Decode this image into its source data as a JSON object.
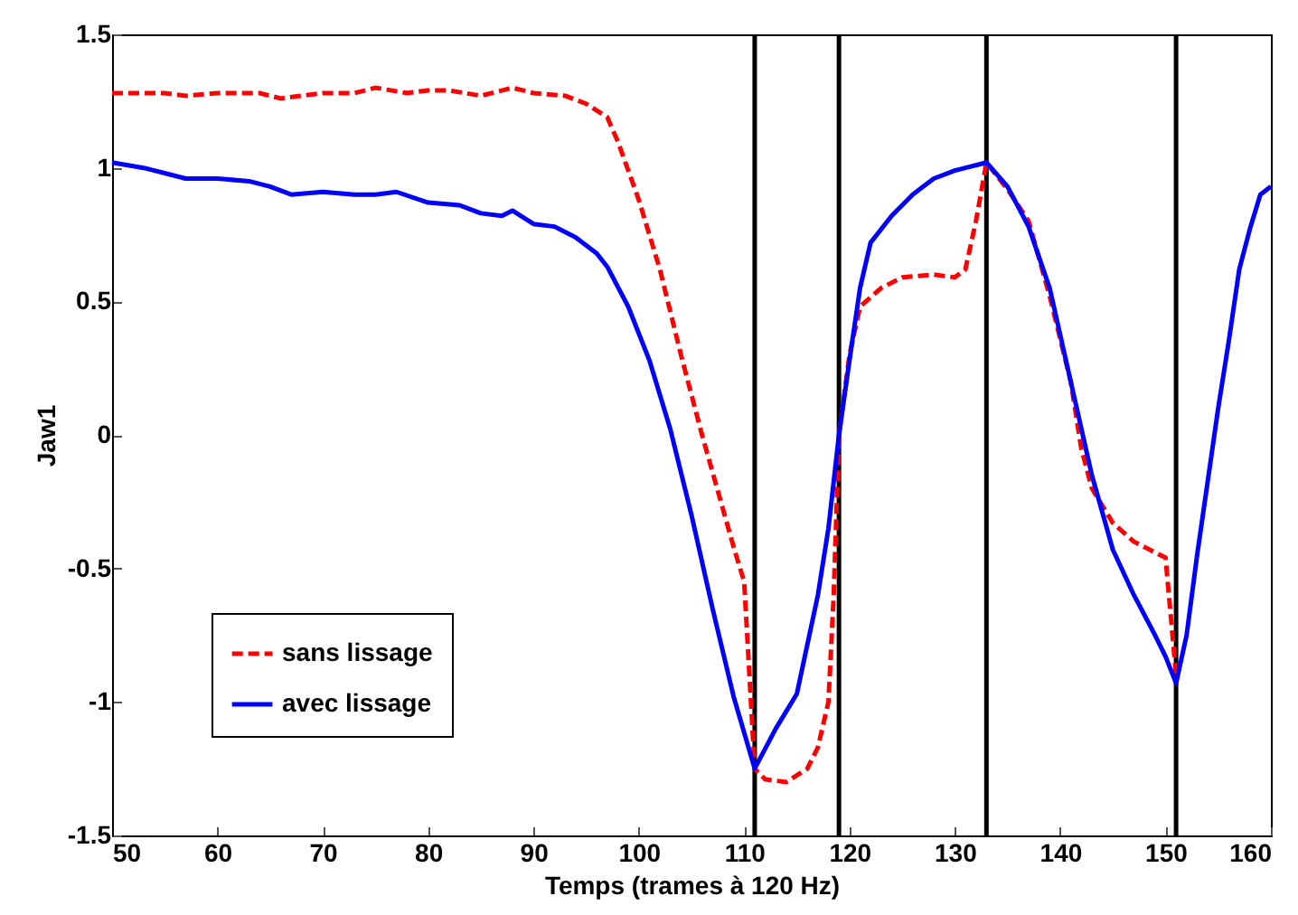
{
  "chart_data": {
    "type": "line",
    "xlabel": "Temps (trames à 120 Hz)",
    "ylabel": "Jaw1",
    "xlim": [
      50,
      160
    ],
    "xticks": [
      50,
      60,
      70,
      80,
      90,
      100,
      110,
      120,
      130,
      140,
      150,
      160
    ],
    "ylim": [
      -1.5,
      1.5
    ],
    "yticks": [
      -1.5,
      -1,
      -0.5,
      0,
      0.5,
      1,
      1.5
    ],
    "grid": false,
    "legend": "bottom left",
    "series": [
      {
        "name": "sans lissage",
        "color": "#ff0000",
        "line_style": "dashed",
        "x": [
          50,
          55,
          57,
          60,
          64,
          66,
          70,
          73,
          75,
          78,
          80,
          82,
          85,
          88,
          90,
          93,
          95,
          97,
          98,
          100,
          102,
          104,
          106,
          108,
          109,
          110,
          111,
          112,
          114,
          116,
          117,
          118,
          118.5,
          119,
          120,
          121,
          123,
          125,
          128,
          130,
          131,
          132,
          133,
          135,
          137,
          139,
          141,
          142,
          143,
          145,
          147,
          150,
          151
        ],
        "values": [
          1.28,
          1.28,
          1.27,
          1.28,
          1.28,
          1.26,
          1.28,
          1.28,
          1.3,
          1.28,
          1.29,
          1.29,
          1.27,
          1.3,
          1.28,
          1.27,
          1.24,
          1.19,
          1.1,
          0.88,
          0.62,
          0.3,
          0.0,
          -0.28,
          -0.42,
          -0.55,
          -1.25,
          -1.29,
          -1.3,
          -1.25,
          -1.17,
          -1.0,
          -0.6,
          0.0,
          0.3,
          0.48,
          0.55,
          0.59,
          0.6,
          0.59,
          0.62,
          0.8,
          1.02,
          0.92,
          0.8,
          0.52,
          0.2,
          -0.05,
          -0.2,
          -0.33,
          -0.4,
          -0.46,
          -0.9
        ]
      },
      {
        "name": "avec lissage",
        "color": "#0000ff",
        "line_style": "solid",
        "x": [
          50,
          53,
          57,
          60,
          63,
          65,
          67,
          70,
          73,
          75,
          77,
          80,
          83,
          85,
          87,
          88,
          90,
          92,
          94,
          96,
          97,
          99,
          101,
          103,
          105,
          107,
          109,
          111,
          113,
          115,
          117,
          118,
          119,
          120,
          121,
          122,
          124,
          126,
          128,
          130,
          133,
          135,
          137,
          139,
          141,
          143,
          145,
          147,
          149,
          150,
          151,
          152,
          153,
          155,
          156,
          157,
          158,
          159,
          160
        ],
        "values": [
          1.02,
          1.0,
          0.96,
          0.96,
          0.95,
          0.93,
          0.9,
          0.91,
          0.9,
          0.9,
          0.91,
          0.87,
          0.86,
          0.83,
          0.82,
          0.84,
          0.79,
          0.78,
          0.74,
          0.68,
          0.63,
          0.48,
          0.28,
          0.02,
          -0.3,
          -0.65,
          -0.98,
          -1.25,
          -1.1,
          -0.97,
          -0.6,
          -0.35,
          0.0,
          0.28,
          0.55,
          0.72,
          0.82,
          0.9,
          0.96,
          0.99,
          1.02,
          0.93,
          0.78,
          0.55,
          0.2,
          -0.15,
          -0.43,
          -0.6,
          -0.75,
          -0.83,
          -0.93,
          -0.75,
          -0.45,
          0.1,
          0.35,
          0.62,
          0.77,
          0.9,
          0.93
        ]
      }
    ],
    "ref_lines": [
      {
        "axis": "x",
        "value": 111,
        "color": "#000000"
      },
      {
        "axis": "x",
        "value": 119,
        "color": "#000000"
      },
      {
        "axis": "x",
        "value": 133,
        "color": "#000000"
      },
      {
        "axis": "x",
        "value": 151,
        "color": "#000000"
      }
    ]
  }
}
